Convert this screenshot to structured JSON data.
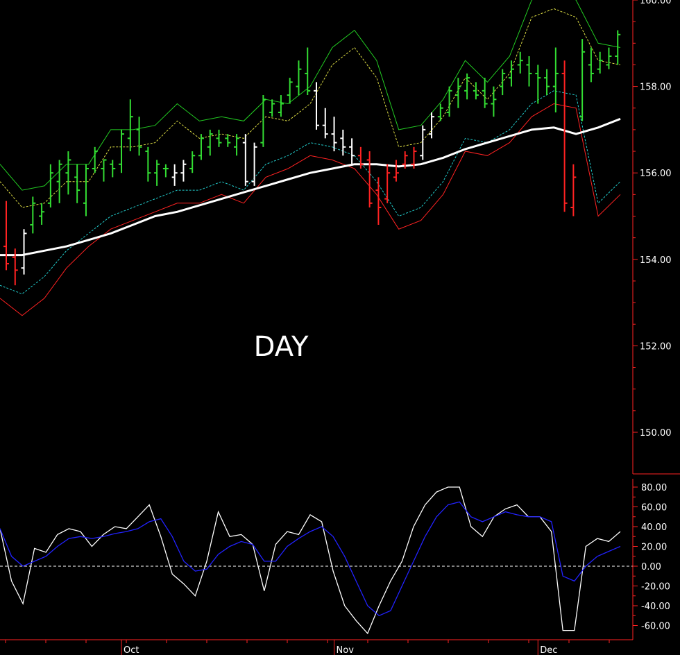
{
  "chart_data": [
    {
      "type": "ohlc",
      "panel": "price",
      "stamp": "DAY",
      "ylim": [
        149,
        160
      ],
      "y_ticks": [
        "150.00",
        "152.00",
        "154.00",
        "156.00",
        "158.00",
        "160.00"
      ],
      "x_ticks": [
        "Oct",
        "Nov",
        "Dec"
      ],
      "x_tick_positions": [
        6.5,
        18.5,
        30
      ],
      "colors": {
        "up_bar": "#33dd33",
        "neutral_bar": "#ffffff",
        "down_bar": "#ff2222",
        "upper_band": "#22cc22",
        "upper_inner_band": "#dddd44",
        "lower_inner_band": "#22cccc",
        "lower_band": "#ff2222",
        "moving_average": "#ffffff",
        "axis": "#ff2222"
      },
      "bars": [
        {
          "h": 155.35,
          "l": 153.75,
          "o": 154.3,
          "c": 153.9,
          "col": "down"
        },
        {
          "h": 154.25,
          "l": 153.4,
          "o": 154.05,
          "c": 153.75,
          "col": "down"
        },
        {
          "h": 154.7,
          "l": 153.65,
          "o": 153.8,
          "c": 154.6,
          "col": "neutral"
        },
        {
          "h": 155.45,
          "l": 154.6,
          "o": 154.8,
          "c": 155.3,
          "col": "up"
        },
        {
          "h": 155.3,
          "l": 154.8,
          "o": 155.0,
          "c": 155.1,
          "col": "up"
        },
        {
          "h": 156.2,
          "l": 155.2,
          "o": 155.3,
          "c": 156.0,
          "col": "up"
        },
        {
          "h": 156.3,
          "l": 155.3,
          "o": 155.8,
          "c": 156.2,
          "col": "up"
        },
        {
          "h": 156.5,
          "l": 155.5,
          "o": 156.0,
          "c": 156.3,
          "col": "up"
        },
        {
          "h": 156.2,
          "l": 155.3,
          "o": 155.9,
          "c": 155.6,
          "col": "up"
        },
        {
          "h": 156.2,
          "l": 155.0,
          "o": 155.3,
          "c": 156.1,
          "col": "up"
        },
        {
          "h": 156.6,
          "l": 156.0,
          "o": 156.1,
          "c": 156.5,
          "col": "up"
        },
        {
          "h": 156.3,
          "l": 155.8,
          "o": 156.1,
          "c": 156.3,
          "col": "up"
        },
        {
          "h": 156.3,
          "l": 155.9,
          "o": 156.2,
          "c": 156.1,
          "col": "up"
        },
        {
          "h": 157.0,
          "l": 156.0,
          "o": 156.2,
          "c": 156.9,
          "col": "up"
        },
        {
          "h": 157.7,
          "l": 156.5,
          "o": 156.8,
          "c": 157.3,
          "col": "up"
        },
        {
          "h": 157.3,
          "l": 156.4,
          "o": 157.0,
          "c": 156.6,
          "col": "up"
        },
        {
          "h": 156.6,
          "l": 155.8,
          "o": 156.5,
          "c": 156.0,
          "col": "up"
        },
        {
          "h": 156.3,
          "l": 155.7,
          "o": 156.0,
          "c": 156.2,
          "col": "up"
        },
        {
          "h": 156.2,
          "l": 155.9,
          "o": 156.1,
          "c": 156.1,
          "col": "up"
        },
        {
          "h": 156.2,
          "l": 155.7,
          "o": 155.9,
          "c": 156.0,
          "col": "neutral"
        },
        {
          "h": 156.3,
          "l": 155.8,
          "o": 156.0,
          "c": 156.2,
          "col": "neutral"
        },
        {
          "h": 156.5,
          "l": 156.0,
          "o": 156.1,
          "c": 156.4,
          "col": "up"
        },
        {
          "h": 156.9,
          "l": 156.3,
          "o": 156.4,
          "c": 156.8,
          "col": "up"
        },
        {
          "h": 157.0,
          "l": 156.4,
          "o": 156.6,
          "c": 156.9,
          "col": "up"
        },
        {
          "h": 157.0,
          "l": 156.6,
          "o": 156.8,
          "c": 156.7,
          "col": "up"
        },
        {
          "h": 156.9,
          "l": 156.6,
          "o": 156.8,
          "c": 156.7,
          "col": "up"
        },
        {
          "h": 156.9,
          "l": 156.4,
          "o": 156.6,
          "c": 156.8,
          "col": "up"
        },
        {
          "h": 156.9,
          "l": 155.7,
          "o": 156.7,
          "c": 155.8,
          "col": "neutral"
        },
        {
          "h": 156.7,
          "l": 155.7,
          "o": 155.8,
          "c": 156.6,
          "col": "neutral"
        },
        {
          "h": 157.8,
          "l": 156.6,
          "o": 156.7,
          "c": 157.7,
          "col": "up"
        },
        {
          "h": 157.7,
          "l": 157.3,
          "o": 157.4,
          "c": 157.6,
          "col": "up"
        },
        {
          "h": 157.8,
          "l": 157.3,
          "o": 157.4,
          "c": 157.6,
          "col": "up"
        },
        {
          "h": 158.2,
          "l": 157.6,
          "o": 157.8,
          "c": 158.1,
          "col": "up"
        },
        {
          "h": 158.6,
          "l": 157.8,
          "o": 158.0,
          "c": 158.4,
          "col": "up"
        },
        {
          "h": 158.9,
          "l": 157.8,
          "o": 158.3,
          "c": 157.9,
          "col": "up"
        },
        {
          "h": 158.1,
          "l": 157.0,
          "o": 157.9,
          "c": 157.1,
          "col": "neutral"
        },
        {
          "h": 157.5,
          "l": 156.8,
          "o": 157.1,
          "c": 156.9,
          "col": "neutral"
        },
        {
          "h": 157.3,
          "l": 156.5,
          "o": 156.9,
          "c": 156.7,
          "col": "neutral"
        },
        {
          "h": 157.0,
          "l": 156.4,
          "o": 156.8,
          "c": 156.6,
          "col": "neutral"
        },
        {
          "h": 156.8,
          "l": 156.2,
          "o": 156.6,
          "c": 156.4,
          "col": "neutral"
        },
        {
          "h": 156.6,
          "l": 156.1,
          "o": 156.4,
          "c": 156.2,
          "col": "down"
        },
        {
          "h": 156.5,
          "l": 155.2,
          "o": 156.3,
          "c": 155.3,
          "col": "down"
        },
        {
          "h": 155.9,
          "l": 154.8,
          "o": 155.6,
          "c": 155.2,
          "col": "down"
        },
        {
          "h": 156.2,
          "l": 155.3,
          "o": 155.4,
          "c": 156.0,
          "col": "down"
        },
        {
          "h": 156.3,
          "l": 155.8,
          "o": 155.9,
          "c": 156.0,
          "col": "down"
        },
        {
          "h": 156.5,
          "l": 156.1,
          "o": 156.2,
          "c": 156.4,
          "col": "down"
        },
        {
          "h": 156.6,
          "l": 156.1,
          "o": 156.2,
          "c": 156.5,
          "col": "down"
        },
        {
          "h": 157.1,
          "l": 156.3,
          "o": 156.4,
          "c": 157.0,
          "col": "neutral"
        },
        {
          "h": 157.4,
          "l": 156.8,
          "o": 156.9,
          "c": 157.3,
          "col": "neutral"
        },
        {
          "h": 157.6,
          "l": 157.2,
          "o": 157.3,
          "c": 157.5,
          "col": "up"
        },
        {
          "h": 158.0,
          "l": 157.3,
          "o": 157.4,
          "c": 157.9,
          "col": "up"
        },
        {
          "h": 158.2,
          "l": 157.5,
          "o": 157.8,
          "c": 158.0,
          "col": "up"
        },
        {
          "h": 158.3,
          "l": 157.7,
          "o": 157.9,
          "c": 158.2,
          "col": "up"
        },
        {
          "h": 158.1,
          "l": 157.7,
          "o": 157.9,
          "c": 157.8,
          "col": "up"
        },
        {
          "h": 158.2,
          "l": 157.5,
          "o": 157.9,
          "c": 157.6,
          "col": "up"
        },
        {
          "h": 158.0,
          "l": 157.3,
          "o": 157.6,
          "c": 157.7,
          "col": "up"
        },
        {
          "h": 158.4,
          "l": 157.8,
          "o": 158.0,
          "c": 158.3,
          "col": "up"
        },
        {
          "h": 158.6,
          "l": 158.0,
          "o": 158.2,
          "c": 158.4,
          "col": "up"
        },
        {
          "h": 158.8,
          "l": 158.3,
          "o": 158.5,
          "c": 158.6,
          "col": "up"
        },
        {
          "h": 158.7,
          "l": 158.0,
          "o": 158.5,
          "c": 158.3,
          "col": "up"
        },
        {
          "h": 158.5,
          "l": 157.6,
          "o": 158.3,
          "c": 158.2,
          "col": "up"
        },
        {
          "h": 158.4,
          "l": 157.8,
          "o": 158.2,
          "c": 158.0,
          "col": "up"
        },
        {
          "h": 158.9,
          "l": 157.4,
          "o": 158.0,
          "c": 158.3,
          "col": "up"
        },
        {
          "h": 158.6,
          "l": 155.1,
          "o": 158.3,
          "c": 155.3,
          "col": "down"
        },
        {
          "h": 156.2,
          "l": 155.0,
          "o": 155.2,
          "c": 155.9,
          "col": "down"
        },
        {
          "h": 159.1,
          "l": 157.2,
          "o": 157.3,
          "c": 158.8,
          "col": "up"
        },
        {
          "h": 158.9,
          "l": 158.1,
          "o": 158.5,
          "c": 158.3,
          "col": "up"
        },
        {
          "h": 158.8,
          "l": 158.3,
          "o": 158.4,
          "c": 158.6,
          "col": "up"
        },
        {
          "h": 158.9,
          "l": 158.4,
          "o": 158.5,
          "c": 158.7,
          "col": "up"
        },
        {
          "h": 159.3,
          "l": 158.5,
          "o": 158.7,
          "c": 159.2,
          "col": "up"
        }
      ],
      "bands": {
        "upper": [
          156.2,
          155.6,
          155.7,
          156.2,
          156.2,
          157.0,
          157.0,
          157.1,
          157.6,
          157.2,
          157.3,
          157.2,
          157.7,
          157.6,
          158.0,
          158.9,
          159.3,
          158.6,
          157.0,
          157.1,
          157.7,
          158.6,
          158.1,
          158.7,
          160.0,
          160.2,
          160.0,
          159.0,
          158.9
        ],
        "upper_inner": [
          155.8,
          155.2,
          155.3,
          155.8,
          155.8,
          156.6,
          156.6,
          156.7,
          157.2,
          156.8,
          156.9,
          156.8,
          157.3,
          157.2,
          157.6,
          158.5,
          158.9,
          158.2,
          156.6,
          156.7,
          157.3,
          158.2,
          157.7,
          158.3,
          159.6,
          159.8,
          159.6,
          158.6,
          158.5
        ],
        "lower_inner": [
          153.4,
          153.2,
          153.6,
          154.2,
          154.6,
          155.0,
          155.2,
          155.4,
          155.6,
          155.6,
          155.8,
          155.6,
          156.2,
          156.4,
          156.7,
          156.6,
          156.4,
          155.8,
          155.0,
          155.2,
          155.8,
          156.8,
          156.7,
          157.0,
          157.6,
          157.9,
          157.8,
          155.3,
          155.8
        ],
        "lower": [
          153.1,
          152.7,
          153.1,
          153.8,
          154.3,
          154.7,
          154.9,
          155.1,
          155.3,
          155.3,
          155.5,
          155.3,
          155.9,
          156.1,
          156.4,
          156.3,
          156.1,
          155.5,
          154.7,
          154.9,
          155.5,
          156.5,
          156.4,
          156.7,
          157.3,
          157.6,
          157.5,
          155.0,
          155.5
        ]
      },
      "moving_average": [
        154.1,
        154.1,
        154.2,
        154.3,
        154.45,
        154.6,
        154.8,
        155.0,
        155.1,
        155.25,
        155.4,
        155.55,
        155.7,
        155.85,
        156.0,
        156.1,
        156.2,
        156.2,
        156.15,
        156.2,
        156.35,
        156.55,
        156.7,
        156.85,
        157.0,
        157.05,
        156.9,
        157.05,
        157.25
      ]
    },
    {
      "type": "line",
      "panel": "oscillator",
      "ylim": [
        -70,
        90
      ],
      "y_ticks": [
        "80.00",
        "60.00",
        "40.00",
        "20.00",
        "0.00",
        "-20.00",
        "-40.00",
        "-60.00"
      ],
      "reference_line": 0,
      "series": [
        {
          "color": "#ffffff",
          "values": [
            38,
            -15,
            -38,
            18,
            14,
            32,
            38,
            35,
            20,
            32,
            40,
            38,
            50,
            62,
            30,
            -8,
            -18,
            -30,
            5,
            55,
            30,
            32,
            22,
            -25,
            22,
            35,
            32,
            52,
            45,
            -5,
            -40,
            -55,
            -68,
            -40,
            -15,
            5,
            40,
            62,
            75,
            80,
            80,
            40,
            30,
            50,
            58,
            62,
            50,
            50,
            35,
            -65,
            -65,
            20,
            28,
            25,
            35
          ]
        },
        {
          "color": "#2222ff",
          "values": [
            38,
            10,
            0,
            5,
            10,
            20,
            28,
            30,
            28,
            30,
            33,
            35,
            38,
            45,
            48,
            30,
            5,
            -5,
            -3,
            12,
            20,
            25,
            22,
            5,
            5,
            20,
            28,
            35,
            40,
            30,
            10,
            -15,
            -40,
            -50,
            -45,
            -20,
            5,
            30,
            50,
            62,
            65,
            50,
            45,
            50,
            55,
            52,
            50,
            50,
            45,
            -10,
            -15,
            0,
            10,
            15,
            20
          ]
        }
      ]
    }
  ]
}
